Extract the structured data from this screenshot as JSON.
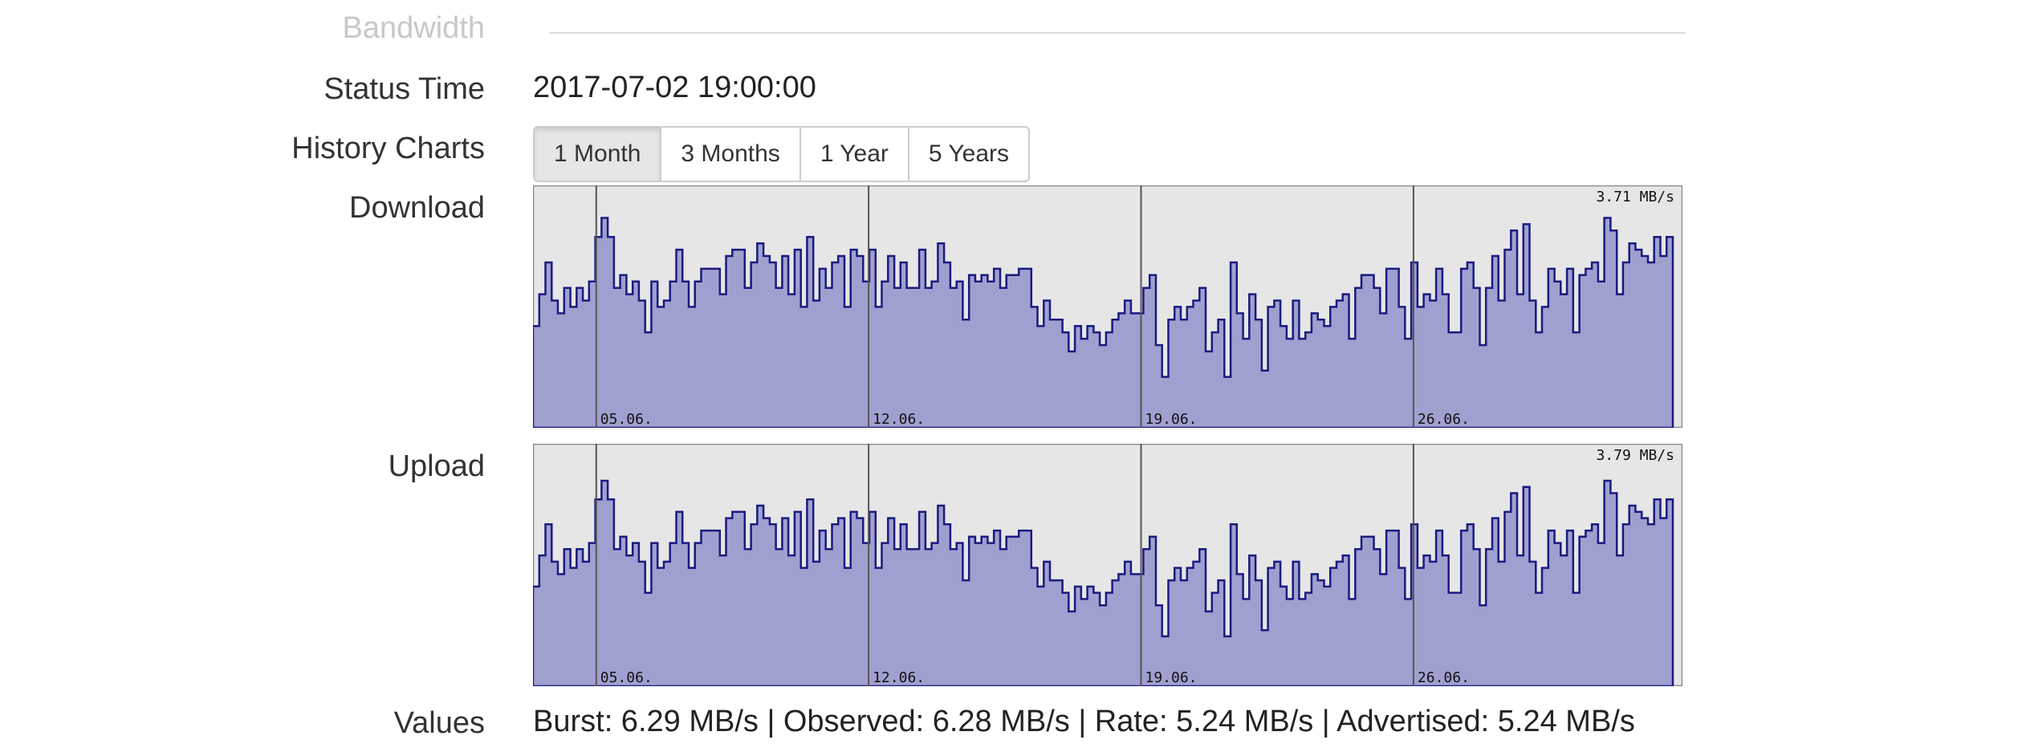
{
  "section": {
    "title": "Bandwidth"
  },
  "status": {
    "label": "Status Time",
    "value": "2017-07-02 19:00:00"
  },
  "history": {
    "label": "History Charts",
    "buttons": [
      {
        "label": "1 Month",
        "active": true
      },
      {
        "label": "3 Months",
        "active": false
      },
      {
        "label": "1 Year",
        "active": false
      },
      {
        "label": "5 Years",
        "active": false
      }
    ]
  },
  "download": {
    "label": "Download"
  },
  "upload": {
    "label": "Upload"
  },
  "values": {
    "label": "Values",
    "text": "Burst: 6.29 MB/s | Observed: 6.28 MB/s | Rate: 5.24 MB/s | Advertised: 5.24 MB/s"
  },
  "colors": {
    "fill": "#a0a0d0",
    "stroke": "#1a1a80",
    "background": "#e6e6e6"
  },
  "chart_data": [
    {
      "type": "area",
      "name": "Download",
      "max_label": "3.71 MB/s",
      "ymax": 3.71,
      "x_tick_labels": [
        "05.06.",
        "12.06.",
        "19.06.",
        "26.06."
      ],
      "values": [
        1.6,
        2.1,
        2.6,
        2.0,
        1.8,
        2.2,
        1.9,
        2.2,
        2.0,
        2.3,
        3.0,
        3.3,
        3.0,
        2.2,
        2.4,
        2.1,
        2.3,
        2.0,
        1.5,
        2.3,
        1.9,
        2.0,
        2.3,
        2.8,
        2.3,
        1.9,
        2.3,
        2.5,
        2.5,
        2.5,
        2.1,
        2.7,
        2.8,
        2.8,
        2.2,
        2.6,
        2.9,
        2.7,
        2.6,
        2.2,
        2.7,
        2.1,
        2.8,
        1.9,
        3.0,
        2.0,
        2.5,
        2.2,
        2.6,
        2.7,
        1.9,
        2.8,
        2.7,
        2.3,
        2.8,
        1.9,
        2.3,
        2.7,
        2.2,
        2.6,
        2.2,
        2.2,
        2.8,
        2.2,
        2.3,
        2.9,
        2.6,
        2.2,
        2.3,
        1.7,
        2.4,
        2.3,
        2.4,
        2.3,
        2.5,
        2.2,
        2.4,
        2.4,
        2.5,
        2.5,
        1.9,
        1.6,
        2.0,
        1.7,
        1.7,
        1.5,
        1.2,
        1.6,
        1.4,
        1.6,
        1.5,
        1.3,
        1.5,
        1.7,
        1.8,
        2.0,
        1.8,
        1.8,
        2.2,
        2.4,
        1.3,
        0.8,
        1.7,
        1.9,
        1.7,
        1.9,
        2.0,
        2.2,
        1.2,
        1.5,
        1.7,
        0.8,
        2.6,
        1.8,
        1.4,
        2.1,
        1.7,
        0.9,
        1.9,
        2.0,
        1.6,
        1.4,
        2.0,
        1.4,
        1.5,
        1.8,
        1.7,
        1.6,
        1.9,
        2.0,
        2.1,
        1.4,
        2.2,
        2.4,
        2.4,
        2.2,
        1.8,
        2.5,
        2.5,
        1.9,
        1.4,
        2.6,
        1.9,
        2.1,
        2.0,
        2.5,
        2.1,
        1.5,
        1.5,
        2.5,
        2.6,
        2.2,
        1.3,
        2.2,
        2.7,
        2.0,
        2.8,
        3.1,
        2.1,
        3.2,
        2.0,
        1.5,
        1.9,
        2.5,
        2.3,
        2.1,
        2.5,
        1.5,
        2.4,
        2.5,
        2.6,
        2.3,
        3.3,
        3.1,
        2.1,
        2.6,
        2.9,
        2.8,
        2.7,
        2.6,
        3.0,
        2.7,
        3.0
      ]
    },
    {
      "type": "area",
      "name": "Upload",
      "max_label": "3.79 MB/s",
      "ymax": 3.79,
      "x_tick_labels": [
        "05.06.",
        "12.06.",
        "19.06.",
        "26.06."
      ],
      "values": [
        1.6,
        2.1,
        2.6,
        2.0,
        1.8,
        2.2,
        1.9,
        2.2,
        2.0,
        2.3,
        3.0,
        3.3,
        3.0,
        2.2,
        2.4,
        2.1,
        2.3,
        2.0,
        1.5,
        2.3,
        1.9,
        2.0,
        2.3,
        2.8,
        2.3,
        1.9,
        2.3,
        2.5,
        2.5,
        2.5,
        2.1,
        2.7,
        2.8,
        2.8,
        2.2,
        2.6,
        2.9,
        2.7,
        2.6,
        2.2,
        2.7,
        2.1,
        2.8,
        1.9,
        3.0,
        2.0,
        2.5,
        2.2,
        2.6,
        2.7,
        1.9,
        2.8,
        2.7,
        2.3,
        2.8,
        1.9,
        2.3,
        2.7,
        2.2,
        2.6,
        2.2,
        2.2,
        2.8,
        2.2,
        2.3,
        2.9,
        2.6,
        2.2,
        2.3,
        1.7,
        2.4,
        2.3,
        2.4,
        2.3,
        2.5,
        2.2,
        2.4,
        2.4,
        2.5,
        2.5,
        1.9,
        1.6,
        2.0,
        1.7,
        1.7,
        1.5,
        1.2,
        1.6,
        1.4,
        1.6,
        1.5,
        1.3,
        1.5,
        1.7,
        1.8,
        2.0,
        1.8,
        1.8,
        2.2,
        2.4,
        1.3,
        0.8,
        1.7,
        1.9,
        1.7,
        1.9,
        2.0,
        2.2,
        1.2,
        1.5,
        1.7,
        0.8,
        2.6,
        1.8,
        1.4,
        2.1,
        1.7,
        0.9,
        1.9,
        2.0,
        1.6,
        1.4,
        2.0,
        1.4,
        1.5,
        1.8,
        1.7,
        1.6,
        1.9,
        2.0,
        2.1,
        1.4,
        2.2,
        2.4,
        2.4,
        2.2,
        1.8,
        2.5,
        2.5,
        1.9,
        1.4,
        2.6,
        1.9,
        2.1,
        2.0,
        2.5,
        2.1,
        1.5,
        1.5,
        2.5,
        2.6,
        2.2,
        1.3,
        2.2,
        2.7,
        2.0,
        2.8,
        3.1,
        2.1,
        3.2,
        2.0,
        1.5,
        1.9,
        2.5,
        2.3,
        2.1,
        2.5,
        1.5,
        2.4,
        2.5,
        2.6,
        2.3,
        3.3,
        3.1,
        2.1,
        2.6,
        2.9,
        2.8,
        2.7,
        2.6,
        3.0,
        2.7,
        3.0
      ]
    }
  ]
}
